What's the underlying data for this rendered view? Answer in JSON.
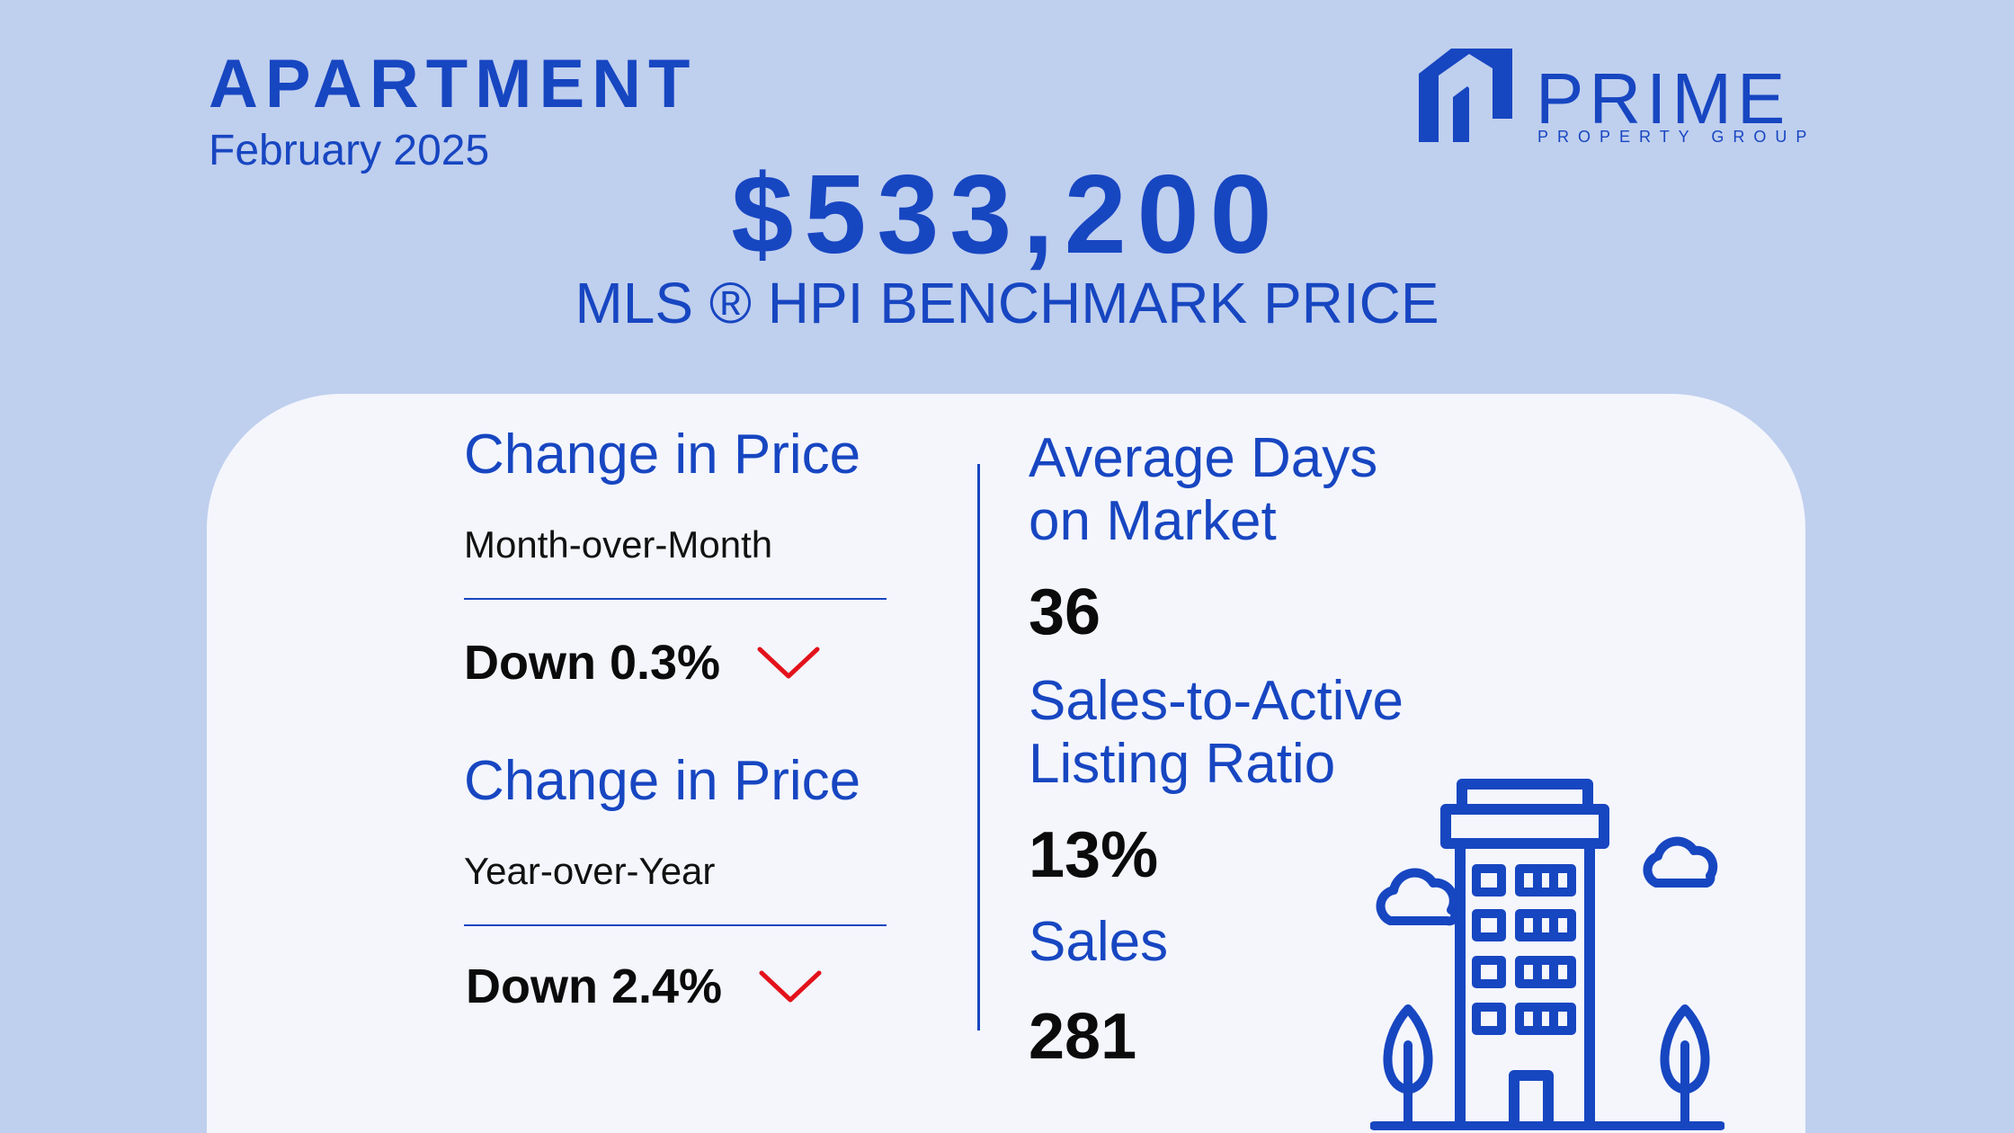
{
  "header": {
    "category": "APARTMENT",
    "period": "February 2025"
  },
  "brand": {
    "name": "PRIME",
    "tagline": "PROPERTY GROUP",
    "logo_icon": "house-roof-icon",
    "color": "#1746c1"
  },
  "benchmark": {
    "price": "$533,200",
    "label": "MLS ®  HPI BENCHMARK PRICE"
  },
  "price_changes": [
    {
      "title": "Change in Price",
      "period": "Month-over-Month",
      "value": "Down 0.3%",
      "direction_icon": "chevron-down-icon"
    },
    {
      "title": "Change in Price",
      "period": "Year-over-Year",
      "value": "Down 2.4%",
      "direction_icon": "chevron-down-icon"
    }
  ],
  "market_stats": {
    "days_on_market": {
      "title_line1": "Average Days",
      "title_line2": "on Market",
      "value": "36"
    },
    "sales_to_active": {
      "title_line1": "Sales-to-Active",
      "title_line2": "Listing Ratio",
      "value": "13%"
    },
    "sales": {
      "title": "Sales",
      "value": "281"
    }
  },
  "illustration": "apartment-building-icon",
  "colors": {
    "background": "#bfcfee",
    "card": "#f4f6fc",
    "accent_blue": "#1746c1",
    "down_red": "#e3121b"
  }
}
